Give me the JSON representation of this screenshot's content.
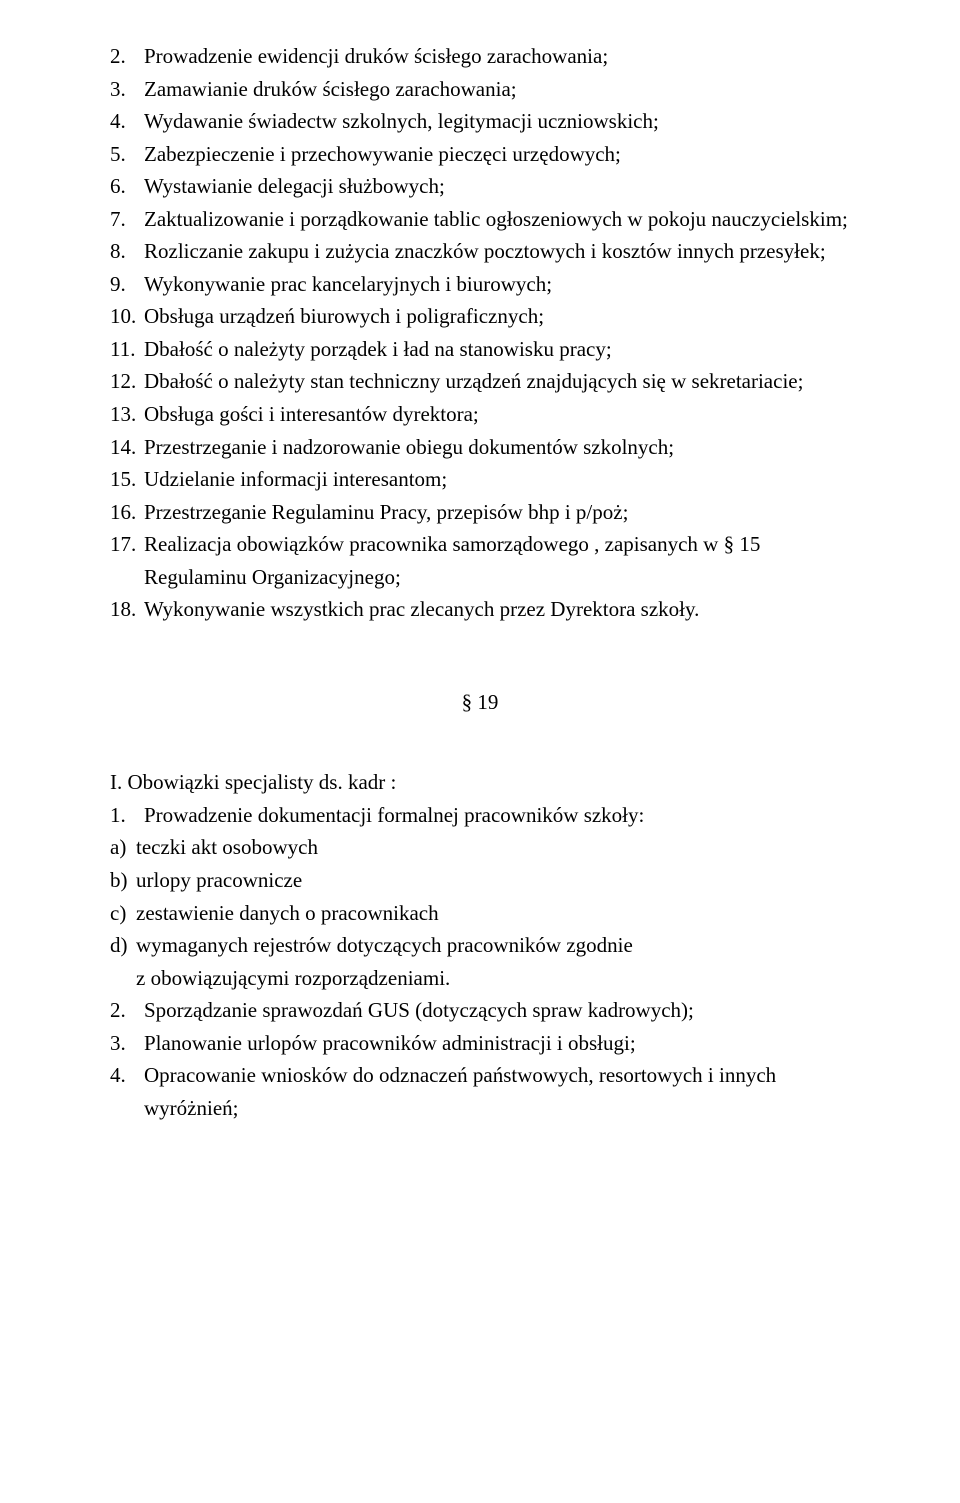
{
  "colors": {
    "text": "#000000",
    "background": "#ffffff"
  },
  "typography": {
    "font_family": "Times New Roman",
    "base_fontsize_pt": 16,
    "line_height": 1.55
  },
  "numbered_block_1": [
    {
      "num": "2.",
      "text": "Prowadzenie ewidencji druków ścisłego zarachowania;"
    },
    {
      "num": "3.",
      "text": "Zamawianie druków ścisłego zarachowania;"
    },
    {
      "num": "4.",
      "text": "Wydawanie świadectw szkolnych, legitymacji uczniowskich;"
    },
    {
      "num": "5.",
      "text": "Zabezpieczenie i przechowywanie pieczęci urzędowych;"
    },
    {
      "num": "6.",
      "text": "Wystawianie delegacji służbowych;"
    },
    {
      "num": "7.",
      "text": "Zaktualizowanie i porządkowanie tablic ogłoszeniowych w pokoju nauczycielskim;",
      "indent_cont": true
    },
    {
      "num": "8.",
      "text": "Rozliczanie zakupu i zużycia znaczków pocztowych i kosztów innych przesyłek;",
      "indent_cont": true
    },
    {
      "num": "9.",
      "text": "Wykonywanie prac kancelaryjnych i  biurowych;"
    },
    {
      "num": "10.",
      "text": "Obsługa urządzeń biurowych i poligraficznych;"
    },
    {
      "num": "11.",
      "text": "Dbałość o należyty porządek i ład na stanowisku pracy;"
    },
    {
      "num": "12.",
      "text": "Dbałość o należyty stan techniczny urządzeń znajdujących się w sekretariacie;",
      "indent_cont": true
    },
    {
      "num": "13.",
      "text": "Obsługa gości i interesantów dyrektora;"
    },
    {
      "num": "14.",
      "text": "Przestrzeganie i nadzorowanie obiegu dokumentów szkolnych;"
    },
    {
      "num": "15.",
      "text": "Udzielanie informacji interesantom;"
    },
    {
      "num": "16.",
      "text": "Przestrzeganie Regulaminu Pracy, przepisów bhp i p/poż;"
    },
    {
      "num": "17.",
      "text": "Realizacja obowiązków pracownika samorządowego , zapisanych w § 15 Regulaminu Organizacyjnego;",
      "indent_cont": true
    },
    {
      "num": "18.",
      "text": "Wykonywanie wszystkich prac zlecanych przez Dyrektora szkoły."
    }
  ],
  "section_symbol": "§ 19",
  "section2_heading": "I. Obowiązki  specjalisty ds. kadr :",
  "section2_item1": {
    "num": "1.",
    "text": "Prowadzenie dokumentacji  formalnej pracowników szkoły:"
  },
  "section2_sublist": [
    {
      "label": "a)",
      "text": "teczki akt osobowych"
    },
    {
      "label": "b)",
      "text": "urlopy pracownicze"
    },
    {
      "label": "c)",
      "text": "zestawienie danych o pracownikach"
    },
    {
      "label": "d)",
      "text": " wymaganych rejestrów dotyczących pracowników zgodnie",
      "cont": "z obowiązującymi rozporządzeniami."
    }
  ],
  "section2_rest": [
    {
      "num": "2.",
      "text": "Sporządzanie sprawozdań GUS (dotyczących spraw kadrowych);"
    },
    {
      "num": "3.",
      "text": "Planowanie urlopów pracowników administracji i obsługi;"
    },
    {
      "num": "4.",
      "text": "Opracowanie wniosków do odznaczeń państwowych, resortowych i innych wyróżnień;",
      "indent_cont": true
    }
  ]
}
